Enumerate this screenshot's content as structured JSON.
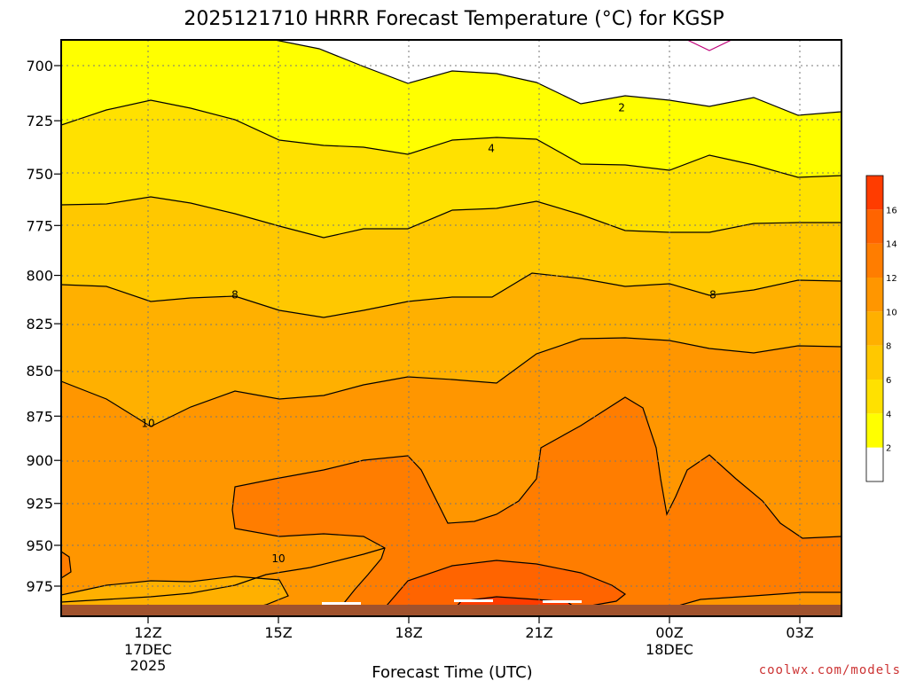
{
  "chart_data": {
    "type": "contour",
    "title": "2025121710 HRRR Forecast Temperature (°C) for KGSP",
    "xlabel": "Forecast Time (UTC)",
    "ylabel": "",
    "y_ticks": [
      700,
      725,
      750,
      775,
      800,
      825,
      850,
      875,
      900,
      925,
      950,
      975
    ],
    "x_ticks": [
      {
        "label": "12Z",
        "sub1": "17DEC",
        "sub2": "2025",
        "hour": 12
      },
      {
        "label": "15Z",
        "sub1": "",
        "sub2": "",
        "hour": 15
      },
      {
        "label": "18Z",
        "sub1": "",
        "sub2": "",
        "hour": 18
      },
      {
        "label": "21Z",
        "sub1": "",
        "sub2": "",
        "hour": 21
      },
      {
        "label": "00Z",
        "sub1": "18DEC",
        "sub2": "",
        "hour": 24
      },
      {
        "label": "03Z",
        "sub1": "",
        "sub2": "",
        "hour": 27
      }
    ],
    "colorbar_labels": [
      "2",
      "4",
      "6",
      "8",
      "10",
      "12",
      "14",
      "16"
    ],
    "contour_labels": [
      {
        "text": "2",
        "hour": 22.9,
        "p": 719
      },
      {
        "text": "4",
        "hour": 19.9,
        "p": 738
      },
      {
        "text": "8",
        "hour": 14.0,
        "p": 810
      },
      {
        "text": "8",
        "hour": 25.0,
        "p": 810
      },
      {
        "text": "10",
        "hour": 12.0,
        "p": 879
      },
      {
        "text": "10",
        "hour": 15.0,
        "p": 958
      }
    ],
    "colors": {
      "band_0": "#ffffff",
      "band_2": "#ffff00",
      "band_4": "#ffe100",
      "band_6": "#ffc800",
      "band_8": "#ffb000",
      "band_10": "#ff9600",
      "band_12": "#ff7d00",
      "band_14": "#ff6400",
      "band_16": "#ff3c00",
      "ground": "#a0522d",
      "credit": "#cc3333"
    }
  },
  "credit": "coolwx.com/models"
}
